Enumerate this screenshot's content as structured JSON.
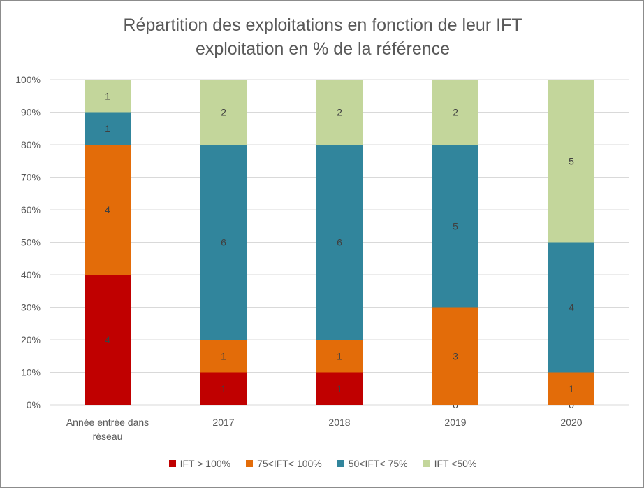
{
  "chart_data": {
    "type": "bar",
    "stacked": true,
    "title_lines": [
      "Répartition des exploitations en fonction de leur IFT",
      "exploitation en % de la référence"
    ],
    "categories": [
      "Année entrée dans réseau",
      "2017",
      "2018",
      "2019",
      "2020"
    ],
    "category_label_lines": [
      [
        "Année entrée dans",
        "réseau"
      ],
      [
        "2017"
      ],
      [
        "2018"
      ],
      [
        "2019"
      ],
      [
        "2020"
      ]
    ],
    "y_ticks": [
      "0%",
      "10%",
      "20%",
      "30%",
      "40%",
      "50%",
      "60%",
      "70%",
      "80%",
      "90%",
      "100%"
    ],
    "ylim": [
      0,
      100
    ],
    "grid": true,
    "legend_position": "bottom",
    "series": [
      {
        "name": "IFT > 100%",
        "color": "#c00000",
        "counts": [
          4,
          1,
          1,
          0,
          0
        ],
        "percent": [
          40,
          10,
          10,
          0,
          0
        ]
      },
      {
        "name": "75<IFT< 100%",
        "color": "#e36c09",
        "counts": [
          4,
          1,
          1,
          3,
          1
        ],
        "percent": [
          40,
          10,
          10,
          30,
          10
        ]
      },
      {
        "name": "50<IFT< 75%",
        "color": "#31859c",
        "counts": [
          1,
          6,
          6,
          5,
          4
        ],
        "percent": [
          10,
          60,
          60,
          50,
          40
        ]
      },
      {
        "name": "IFT <50%",
        "color": "#c3d69b",
        "counts": [
          1,
          2,
          2,
          2,
          5
        ],
        "percent": [
          10,
          20,
          20,
          20,
          50
        ]
      }
    ]
  }
}
